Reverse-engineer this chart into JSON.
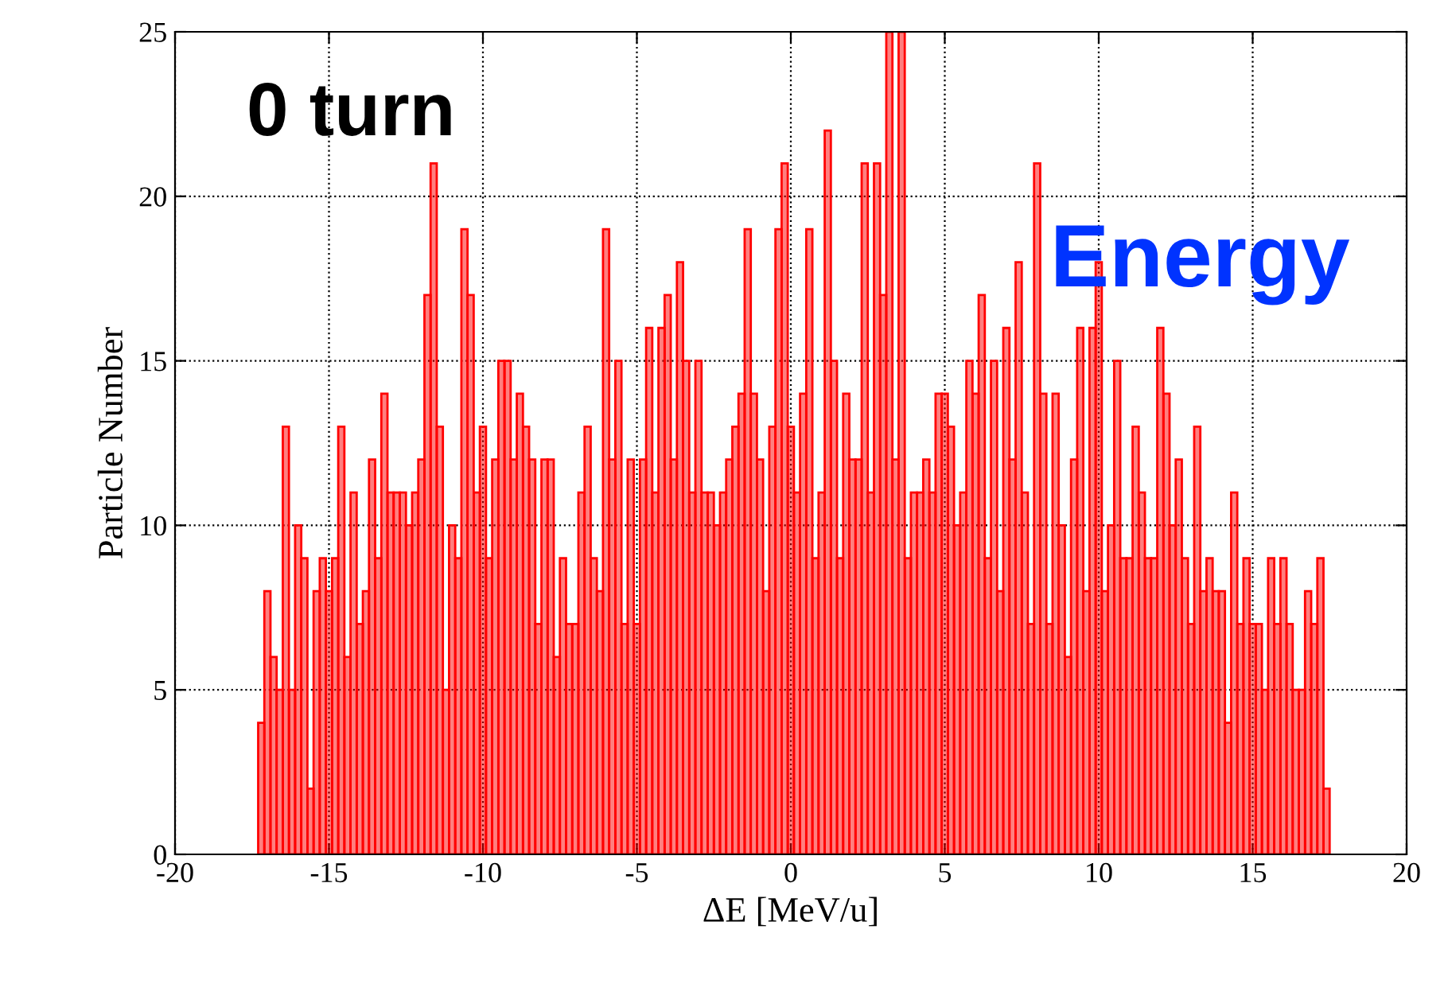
{
  "chart_data": {
    "type": "histogram",
    "xlabel": "ΔE [MeV/u]",
    "ylabel": "Particle Number",
    "annotations": [
      "0 turn",
      "Energy"
    ],
    "bins": [
      -17.3,
      -17.1,
      -16.9,
      -16.7,
      -16.5,
      -16.3,
      -16.1,
      -15.9,
      -15.7,
      -15.5,
      -15.3,
      -15.1,
      -14.9,
      -14.7,
      -14.5,
      -14.3,
      -14.1,
      -13.9,
      -13.7,
      -13.5,
      -13.3,
      -13.1,
      -12.9,
      -12.7,
      -12.5,
      -12.3,
      -12.1,
      -11.9,
      -11.7,
      -11.5,
      -11.3,
      -11.1,
      -10.9,
      -10.7,
      -10.5,
      -10.3,
      -10.1,
      -9.9,
      -9.7,
      -9.5,
      -9.3,
      -9.1,
      -8.9,
      -8.7,
      -8.5,
      -8.3,
      -8.1,
      -7.9,
      -7.7,
      -7.5,
      -7.3,
      -7.1,
      -6.9,
      -6.7,
      -6.5,
      -6.3,
      -6.1,
      -5.9,
      -5.7,
      -5.5,
      -5.3,
      -5.1,
      -4.9,
      -4.7,
      -4.5,
      -4.3,
      -4.1,
      -3.9,
      -3.7,
      -3.5,
      -3.3,
      -3.1,
      -2.9,
      -2.7,
      -2.5,
      -2.3,
      -2.1,
      -1.9,
      -1.7,
      -1.5,
      -1.3,
      -1.1,
      -0.9,
      -0.7,
      -0.5,
      -0.3,
      -0.1,
      0.1,
      0.3,
      0.5,
      0.7,
      0.9,
      1.1,
      1.3,
      1.5,
      1.7,
      1.9,
      2.1,
      2.3,
      2.5,
      2.7,
      2.9,
      3.1,
      3.3,
      3.5,
      3.7,
      3.9,
      4.1,
      4.3,
      4.5,
      4.7,
      4.9,
      5.1,
      5.3,
      5.5,
      5.7,
      5.9,
      6.1,
      6.3,
      6.5,
      6.7,
      6.9,
      7.1,
      7.3,
      7.5,
      7.7,
      7.9,
      8.1,
      8.3,
      8.5,
      8.7,
      8.9,
      9.1,
      9.3,
      9.5,
      9.7,
      9.9,
      10.1,
      10.3,
      10.5,
      10.7,
      10.9,
      11.1,
      11.3,
      11.5,
      11.7,
      11.9,
      12.1,
      12.3,
      12.5,
      12.7,
      12.9,
      13.1,
      13.3,
      13.5,
      13.7,
      13.9,
      14.1,
      14.3,
      14.5,
      14.7,
      14.9,
      15.1,
      15.3,
      15.5,
      15.7,
      15.9,
      16.1,
      16.3,
      16.5,
      16.7,
      16.9,
      17.1,
      17.3,
      17.5
    ],
    "values": [
      4,
      8,
      6,
      5,
      13,
      5,
      10,
      9,
      2,
      8,
      9,
      8,
      9,
      13,
      6,
      11,
      7,
      8,
      12,
      9,
      14,
      11,
      11,
      11,
      10,
      11,
      12,
      17,
      21,
      13,
      5,
      10,
      9,
      19,
      17,
      11,
      13,
      9,
      12,
      15,
      15,
      12,
      14,
      13,
      12,
      7,
      12,
      12,
      6,
      9,
      7,
      7,
      11,
      13,
      9,
      8,
      19,
      12,
      15,
      7,
      12,
      7,
      12,
      16,
      11,
      16,
      17,
      12,
      18,
      15,
      11,
      15,
      11,
      11,
      10,
      11,
      12,
      13,
      14,
      19,
      14,
      12,
      8,
      13,
      19,
      21,
      13,
      11,
      14,
      19,
      9,
      11,
      22,
      15,
      9,
      14,
      12,
      12,
      21,
      11,
      21,
      17,
      25,
      12,
      25,
      9,
      11,
      11,
      12,
      11,
      14,
      14,
      13,
      10,
      11,
      15,
      14,
      17,
      9,
      15,
      8,
      16,
      12,
      18,
      11,
      7,
      21,
      14,
      7,
      14,
      10,
      6,
      12,
      16,
      8,
      16,
      18,
      8,
      10,
      15,
      9,
      9,
      13,
      11,
      9,
      9,
      16,
      14,
      10,
      12,
      9,
      7,
      13,
      8,
      9,
      8,
      8,
      4,
      11,
      7,
      9,
      7,
      7,
      5,
      9,
      7,
      9,
      7,
      5,
      5,
      8,
      7,
      9,
      2
    ],
    "color": "#ff0000",
    "xlim": [
      -20,
      20
    ],
    "xticks": [
      -20,
      -15,
      -10,
      -5,
      0,
      5,
      10,
      15,
      20
    ],
    "ylim": [
      0,
      25
    ],
    "yticks": [
      0,
      5,
      10,
      15,
      20,
      25
    ],
    "grid": true
  }
}
